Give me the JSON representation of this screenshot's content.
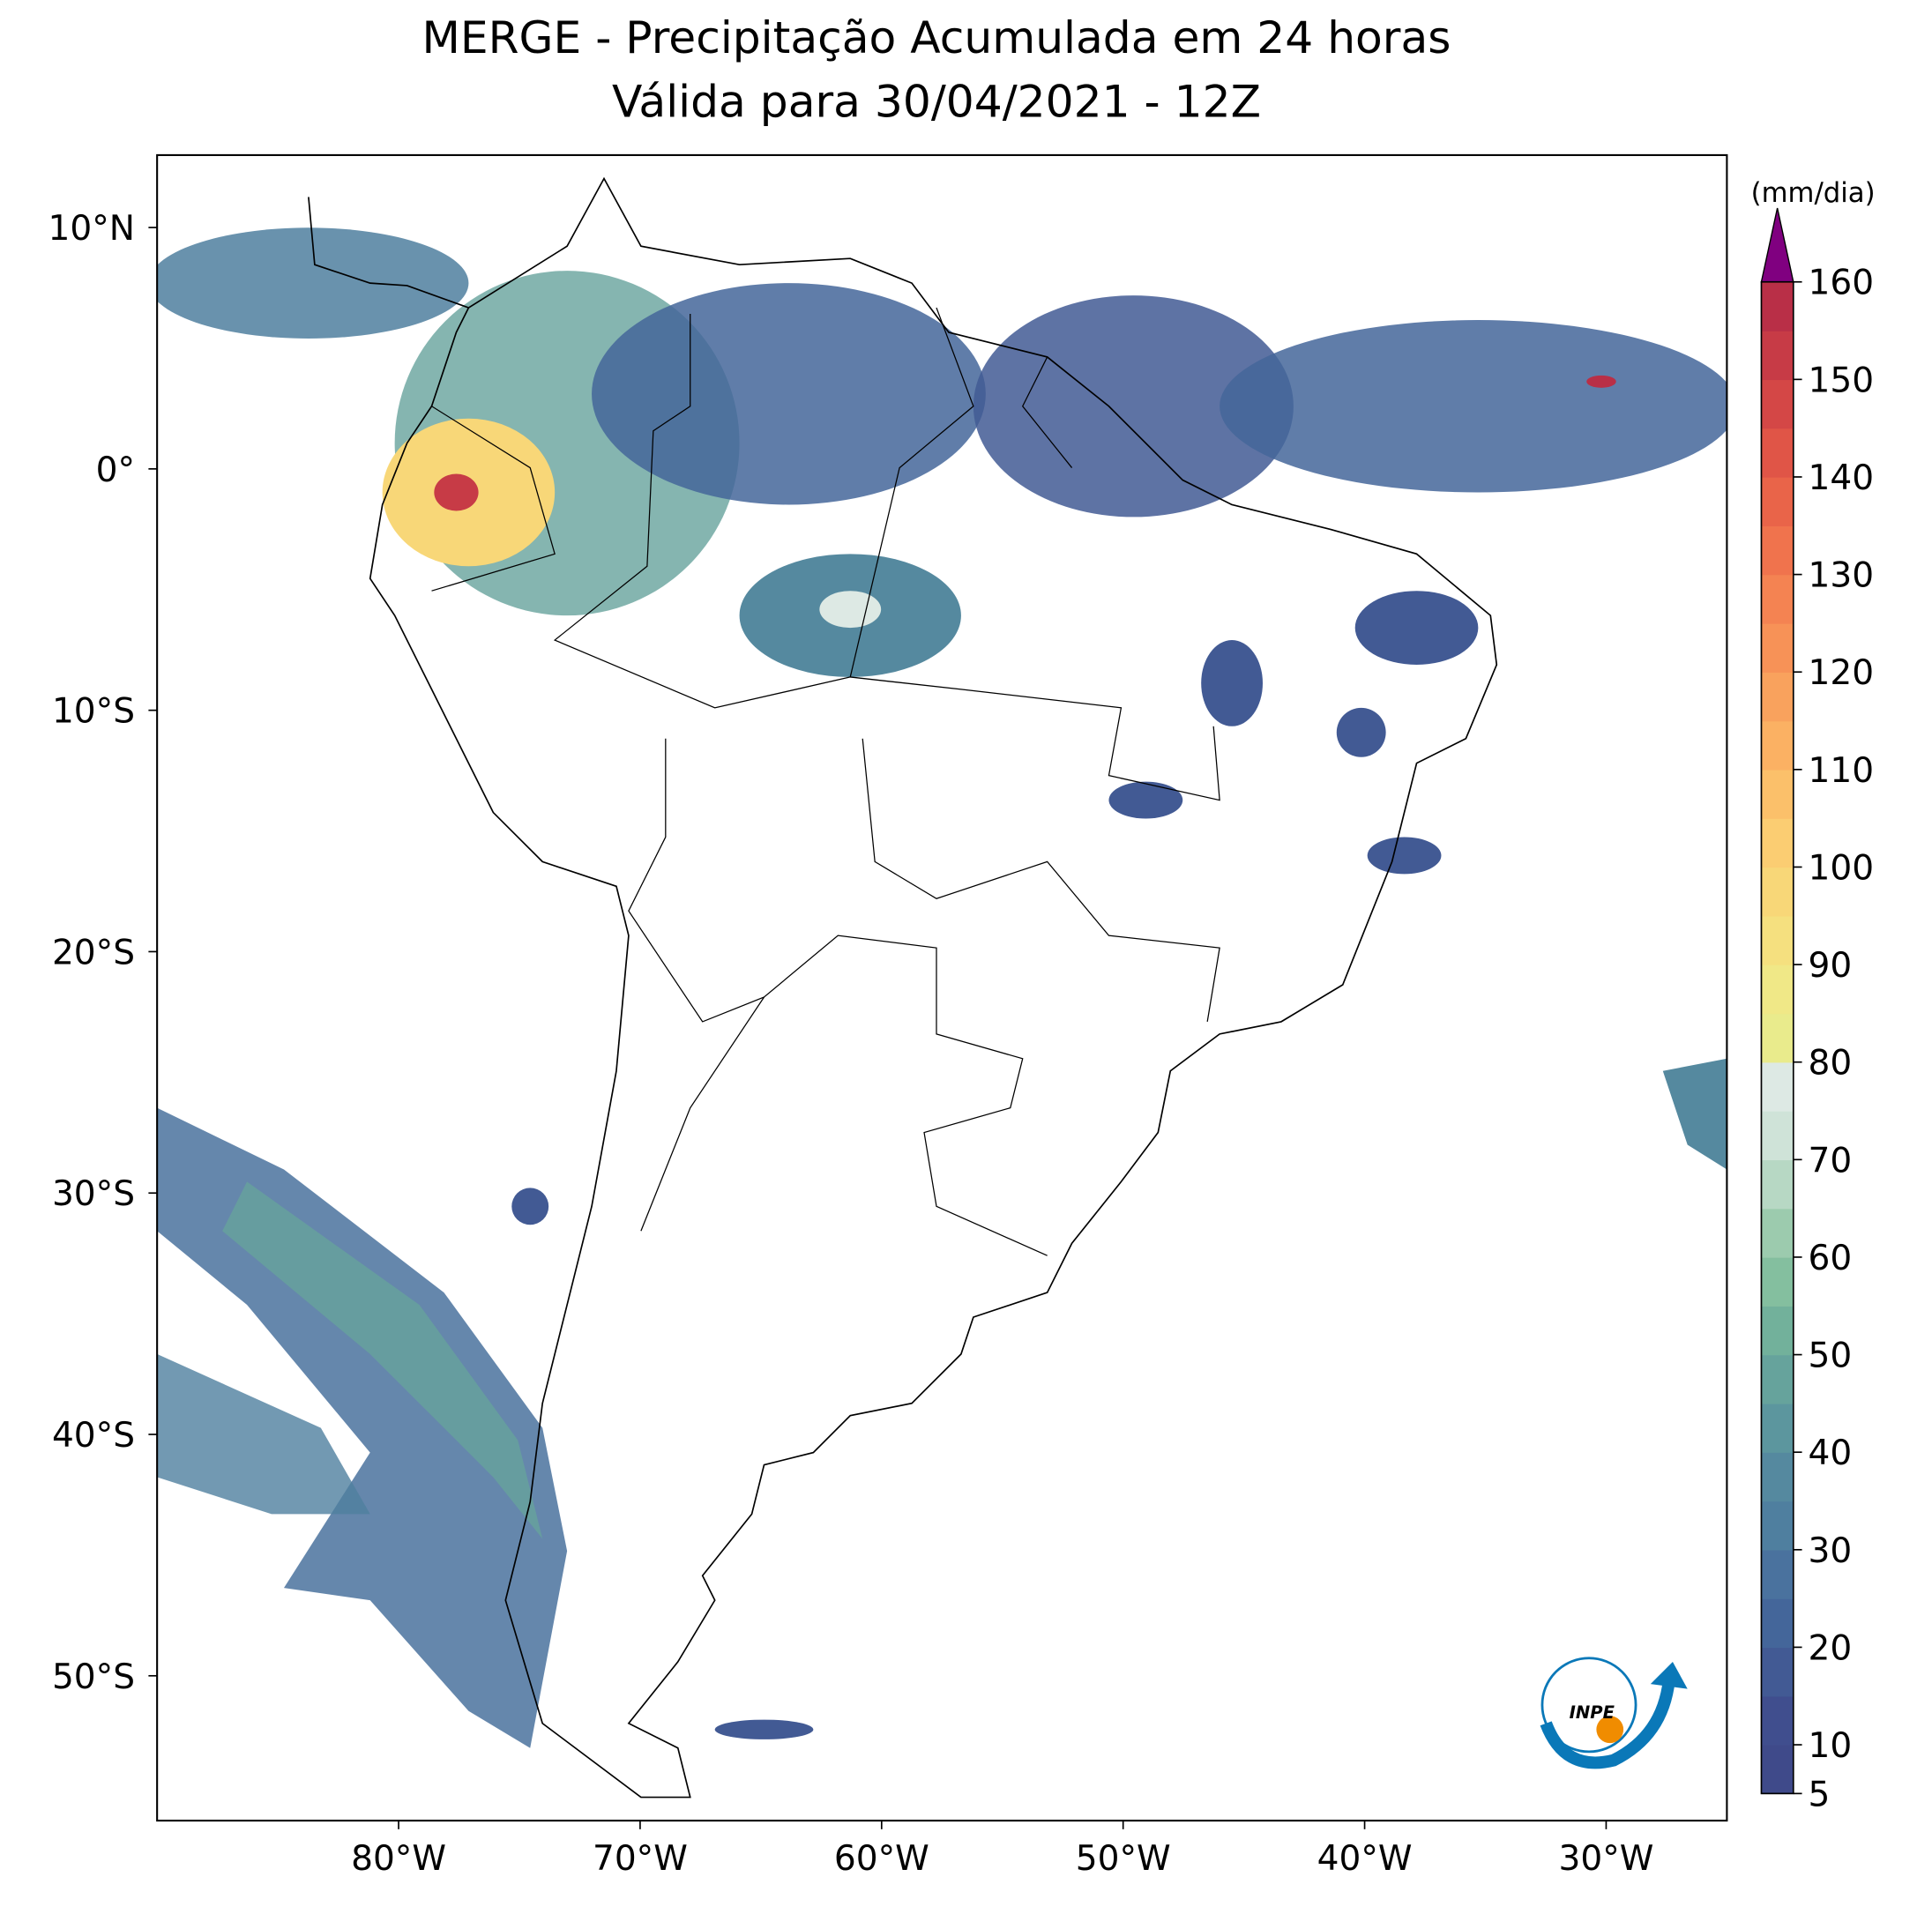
{
  "title": [
    "MERGE - Precipitação Acumulada em 24 horas",
    "Válida para 30/04/2021 - 12Z"
  ],
  "logo": "INPE",
  "map": {
    "xlim": [
      -90,
      -25
    ],
    "ylim": [
      -56,
      13
    ],
    "xticks": [
      {
        "value": -80,
        "label": "80°W"
      },
      {
        "value": -70,
        "label": "70°W"
      },
      {
        "value": -60,
        "label": "60°W"
      },
      {
        "value": -50,
        "label": "50°W"
      },
      {
        "value": -40,
        "label": "40°W"
      },
      {
        "value": -30,
        "label": "30°W"
      }
    ],
    "yticks": [
      {
        "value": 10,
        "label": "10°N"
      },
      {
        "value": 0,
        "label": "0°"
      },
      {
        "value": -10,
        "label": "10°S"
      },
      {
        "value": -20,
        "label": "20°S"
      },
      {
        "value": -30,
        "label": "30°S"
      },
      {
        "value": -40,
        "label": "40°S"
      },
      {
        "value": -50,
        "label": "50°S"
      }
    ]
  },
  "colorbar": {
    "label": "(mm/dia)",
    "lim": [
      5,
      160
    ],
    "ticks": [
      5,
      10,
      20,
      30,
      40,
      50,
      60,
      70,
      80,
      90,
      100,
      110,
      120,
      130,
      140,
      150,
      160
    ],
    "extend_color": "#800080",
    "colors": [
      "#3f4a8a",
      "#404e8e",
      "#425a94",
      "#44669a",
      "#4a729e",
      "#4f7f9f",
      "#55899f",
      "#5c969e",
      "#66a39c",
      "#72b19b",
      "#84bf9f",
      "#9ccbae",
      "#b7d8c4",
      "#cfe3d8",
      "#dde9e4",
      "#e9eb8c",
      "#f0e887",
      "#f5e07f",
      "#f8d778",
      "#fbcd72",
      "#fbc06a",
      "#fbb163",
      "#f9a25d",
      "#f79257",
      "#f48352",
      "#f0734d",
      "#e96449",
      "#e05547",
      "#d44746",
      "#c73b46",
      "#b92f47"
    ]
  }
}
